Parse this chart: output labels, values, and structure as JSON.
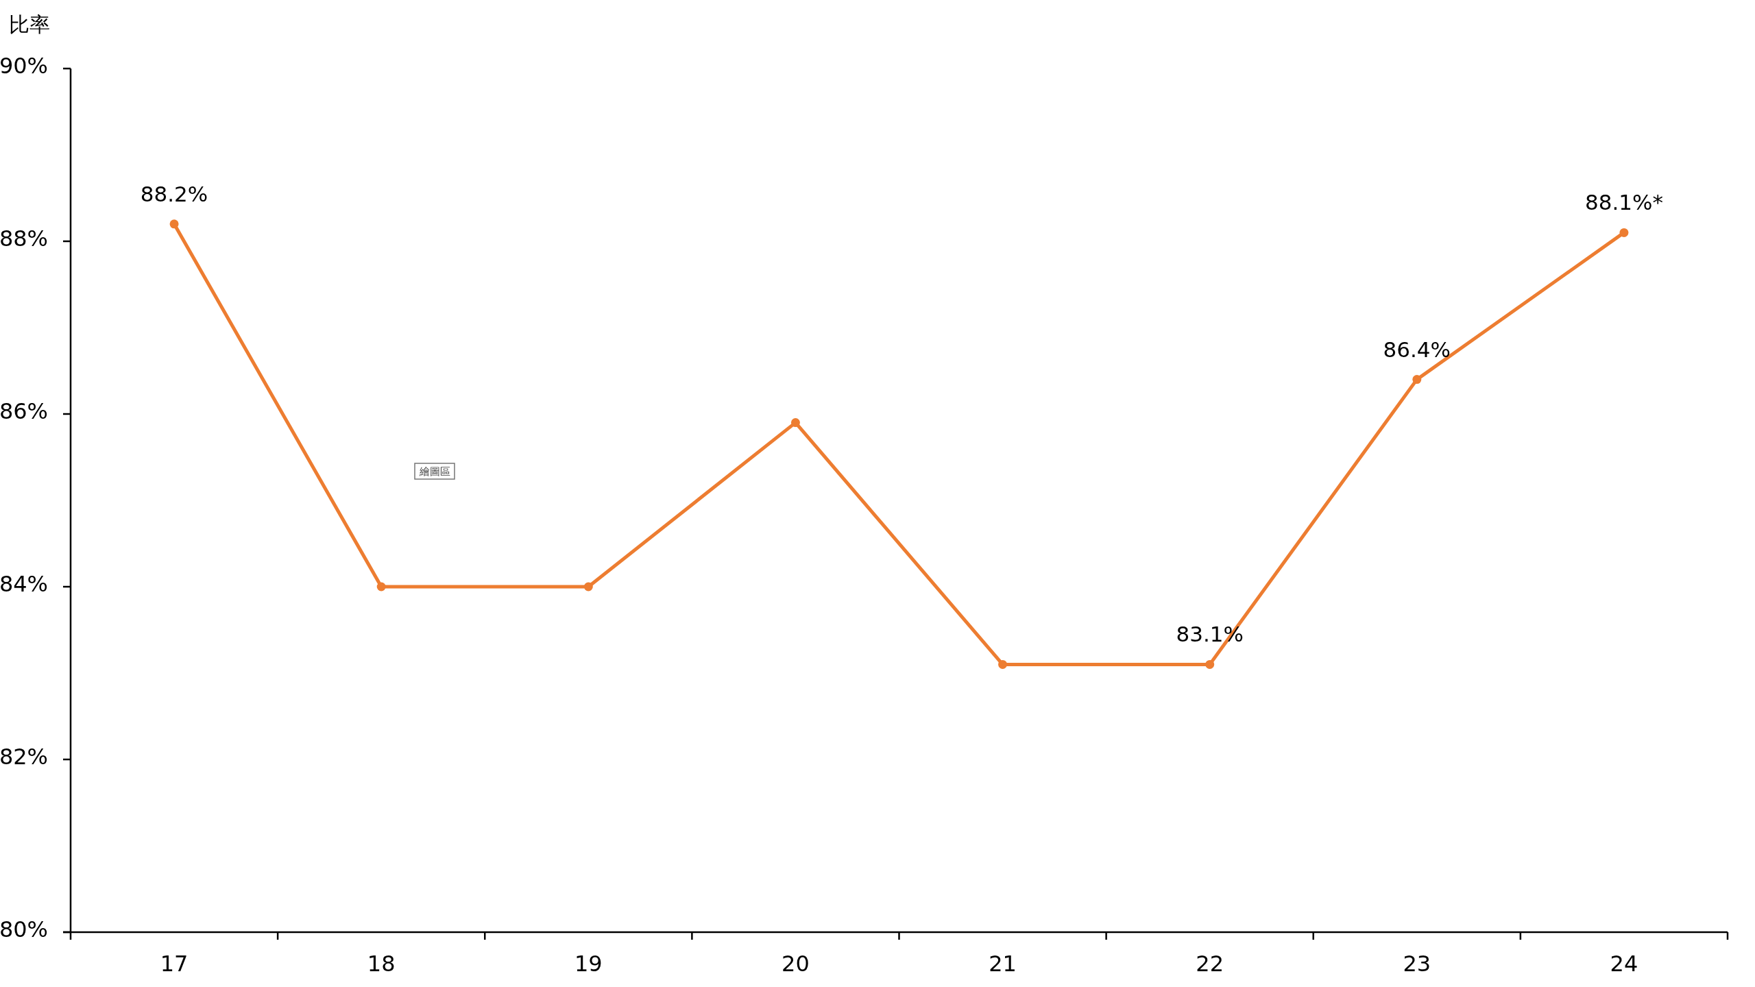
{
  "chart_data": {
    "type": "line",
    "ylabel": "比率",
    "categories": [
      "17",
      "18",
      "19",
      "20",
      "21",
      "22",
      "23",
      "24"
    ],
    "series": [
      {
        "color": "#ed7d31",
        "values": [
          88.2,
          84.0,
          84.0,
          85.9,
          83.1,
          83.1,
          86.4,
          88.1
        ],
        "value_labels": [
          "88.2%",
          null,
          null,
          null,
          null,
          "83.1%",
          "86.4%",
          "88.1%*"
        ]
      }
    ],
    "ylim": [
      80,
      90
    ],
    "yticks": [
      {
        "value": 80,
        "label": "80%"
      },
      {
        "value": 82,
        "label": "82%"
      },
      {
        "value": 84,
        "label": "84%"
      },
      {
        "value": 86,
        "label": "86%"
      },
      {
        "value": 88,
        "label": "88%"
      },
      {
        "value": 90,
        "label": "90%"
      }
    ],
    "marker": "circle",
    "line_style": "solid",
    "annotations": [
      "繪圖區"
    ]
  }
}
